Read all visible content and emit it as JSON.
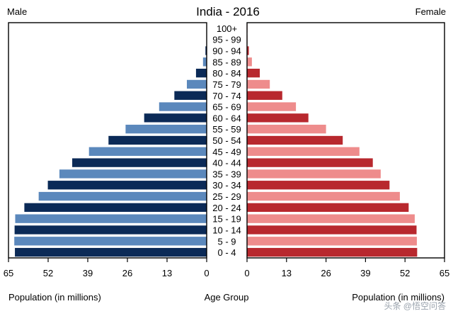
{
  "chart_data": {
    "type": "bar",
    "title": "India - 2016",
    "left_label": "Male",
    "right_label": "Female",
    "xlabel_left": "Population (in millions)",
    "xlabel_center": "Age Group",
    "xlabel_right": "Population (in millions)",
    "xlim": [
      0,
      65
    ],
    "x_ticks": [
      0,
      13,
      26,
      39,
      52,
      65
    ],
    "x_ticks_left": [
      "65",
      "52",
      "39",
      "26",
      "13",
      "0"
    ],
    "x_ticks_right": [
      "0",
      "13",
      "26",
      "39",
      "52",
      "65"
    ],
    "grid": false,
    "categories": [
      "0 - 4",
      "5 - 9",
      "10 - 14",
      "15 - 19",
      "20 - 24",
      "25 - 29",
      "30 - 34",
      "35 - 39",
      "40 - 44",
      "45 - 49",
      "50 - 54",
      "55 - 59",
      "60 - 64",
      "65 - 69",
      "70 - 74",
      "75 - 79",
      "80 - 84",
      "85 - 89",
      "90 - 94",
      "95 - 99",
      "100+"
    ],
    "series": [
      {
        "name": "Male",
        "values": [
          62.9,
          63.1,
          63.0,
          62.8,
          59.8,
          55.1,
          52.1,
          48.3,
          44.1,
          38.6,
          32.2,
          26.6,
          20.5,
          15.6,
          10.6,
          6.5,
          3.5,
          1.2,
          0.4,
          0.1,
          0.05
        ]
      },
      {
        "name": "Female",
        "values": [
          56.0,
          55.9,
          55.8,
          55.2,
          53.2,
          50.3,
          46.9,
          44.0,
          41.4,
          37.0,
          31.5,
          26.0,
          20.2,
          16.1,
          11.6,
          7.5,
          4.2,
          1.6,
          0.6,
          0.15,
          0.05
        ]
      }
    ],
    "colors": {
      "male_dark": "#0b2a57",
      "male_light": "#5b88bc",
      "female_dark": "#b8282e",
      "female_light": "#ee8c8c"
    }
  },
  "watermark": "头条 @悟空问答"
}
